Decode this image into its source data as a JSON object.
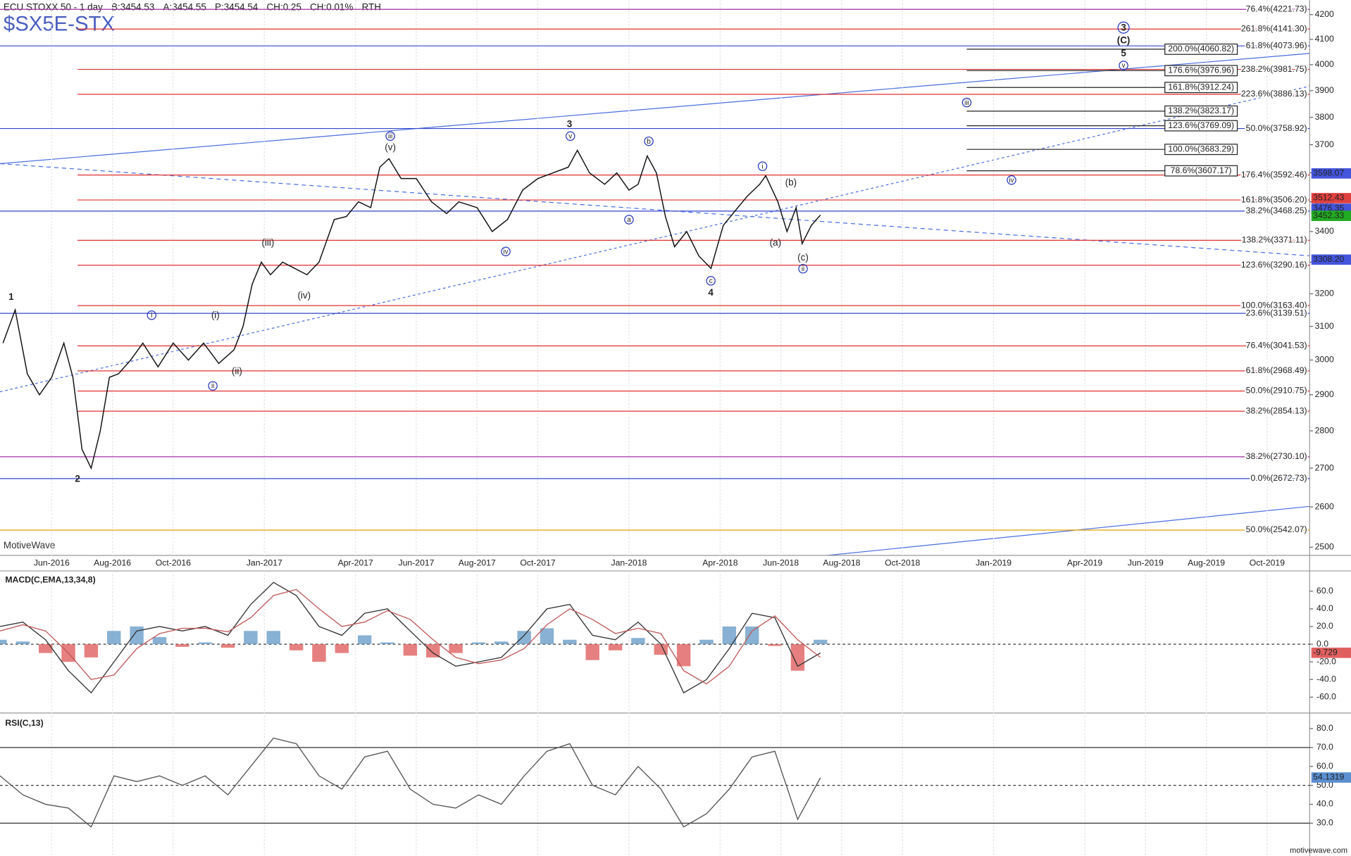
{
  "chart_data": [
    {
      "type": "price",
      "title": "$SX5E-STX",
      "watermark": "MotiveWave",
      "header": [
        {
          "text": "ECU STOXX 50 - 1 day",
          "color": "#222"
        },
        {
          "text": "B:3454.53",
          "color": "#222"
        },
        {
          "text": "A:3454.55",
          "color": "#222"
        },
        {
          "text": "P:3454.54",
          "color": "#222"
        },
        {
          "text": "CH:0.25",
          "color": "#1a9a1a"
        },
        {
          "text": "CH:0.01%",
          "color": "#1a9a1a"
        },
        {
          "text": "RTH",
          "color": "#9a9ae0"
        }
      ],
      "log": true,
      "grid": true,
      "color": "#111",
      "xlim": [
        3.3,
        46.4
      ],
      "xticks": [
        {
          "value": 5,
          "label": "Jun-2016"
        },
        {
          "value": 7,
          "label": "Aug-2016"
        },
        {
          "value": 9,
          "label": "Oct-2016"
        },
        {
          "value": 12,
          "label": "Jan-2017"
        },
        {
          "value": 15,
          "label": "Apr-2017"
        },
        {
          "value": 17,
          "label": "Jun-2017"
        },
        {
          "value": 19,
          "label": "Aug-2017"
        },
        {
          "value": 21,
          "label": "Oct-2017"
        },
        {
          "value": 24,
          "label": "Jan-2018"
        },
        {
          "value": 27,
          "label": "Apr-2018"
        },
        {
          "value": 29,
          "label": "Jun-2018"
        },
        {
          "value": 31,
          "label": "Aug-2018"
        },
        {
          "value": 33,
          "label": "Oct-2018"
        },
        {
          "value": 36,
          "label": "Jan-2019"
        },
        {
          "value": 39,
          "label": "Apr-2019"
        },
        {
          "value": 41,
          "label": "Jun-2019"
        },
        {
          "value": 43,
          "label": "Aug-2019"
        },
        {
          "value": 45,
          "label": "Oct-2019"
        }
      ],
      "ylim": [
        2480,
        4260
      ],
      "yticks": [
        2500,
        2600,
        2700,
        2800,
        2900,
        3000,
        3100,
        3200,
        3300,
        3400,
        3500,
        3600,
        3700,
        3800,
        3900,
        4000,
        4100,
        4200
      ],
      "x": [
        3.4,
        3.8,
        4.2,
        4.6,
        5.0,
        5.4,
        5.7,
        6.0,
        6.3,
        6.6,
        6.9,
        7.2,
        7.6,
        8.0,
        8.5,
        9.0,
        9.5,
        10.0,
        10.5,
        11.0,
        11.3,
        11.6,
        11.9,
        12.2,
        12.6,
        13.0,
        13.4,
        13.8,
        14.3,
        14.7,
        15.1,
        15.5,
        15.8,
        16.1,
        16.5,
        17.0,
        17.5,
        18.0,
        18.4,
        19.0,
        19.5,
        20.0,
        20.5,
        21.0,
        21.5,
        22.0,
        22.3,
        22.7,
        23.2,
        23.6,
        24.0,
        24.3,
        24.6,
        24.9,
        25.2,
        25.5,
        25.9,
        26.3,
        26.7,
        27.1,
        27.5,
        27.9,
        28.3,
        28.5,
        28.9,
        29.2,
        29.5,
        29.7,
        30.0,
        30.3
      ],
      "values": [
        3050,
        3150,
        2960,
        2900,
        2950,
        3050,
        2950,
        2750,
        2700,
        2800,
        2950,
        2960,
        3000,
        3050,
        2980,
        3050,
        3000,
        3050,
        2990,
        3030,
        3100,
        3230,
        3300,
        3260,
        3300,
        3280,
        3260,
        3300,
        3440,
        3450,
        3500,
        3480,
        3620,
        3650,
        3580,
        3580,
        3500,
        3460,
        3500,
        3480,
        3400,
        3440,
        3540,
        3580,
        3600,
        3620,
        3680,
        3600,
        3560,
        3600,
        3540,
        3560,
        3660,
        3600,
        3450,
        3350,
        3400,
        3320,
        3280,
        3420,
        3470,
        3520,
        3560,
        3590,
        3500,
        3400,
        3480,
        3360,
        3420,
        3455
      ],
      "levels": [
        {
          "label": "76.4%(4221.73)",
          "value": 4221.73,
          "color": "#a030a0"
        },
        {
          "label": "261.8%(4141.30)",
          "value": 4141.3,
          "color": "#e03030"
        },
        {
          "label": "61.8%(4073.96)",
          "value": 4073.96,
          "color": "#3344cc"
        },
        {
          "label": "238.2%(3981.75)",
          "value": 3981.75,
          "color": "#e03030"
        },
        {
          "label": "223.6%(3886.13)",
          "value": 3886.13,
          "color": "#e03030"
        },
        {
          "label": "50.0%(3758.92)",
          "value": 3758.92,
          "color": "#3344cc"
        },
        {
          "label": "176.4%(3592.46)",
          "value": 3592.46,
          "color": "#e03030"
        },
        {
          "label": "161.8%(3506.20)",
          "value": 3506.2,
          "color": "#e03030"
        },
        {
          "label": "38.2%(3468.25)",
          "value": 3468.25,
          "color": "#3344cc"
        },
        {
          "label": "138.2%(3371.11)",
          "value": 3371.11,
          "color": "#e03030"
        },
        {
          "label": "123.6%(3290.16)",
          "value": 3290.16,
          "color": "#e03030"
        },
        {
          "label": "100.0%(3163.40)",
          "value": 3163.4,
          "color": "#e03030"
        },
        {
          "label": "23.6%(3139.51)",
          "value": 3139.51,
          "color": "#3344cc"
        },
        {
          "label": "76.4%(3041.53)",
          "value": 3041.53,
          "color": "#e03030"
        },
        {
          "label": "61.8%(2968.49)",
          "value": 2968.49,
          "color": "#e03030"
        },
        {
          "label": "50.0%(2910.75)",
          "value": 2910.75,
          "color": "#e03030"
        },
        {
          "label": "38.2%(2854.13)",
          "value": 2854.13,
          "color": "#e03030"
        },
        {
          "label": "38.2%(2730.10)",
          "value": 2730.1,
          "color": "#a030a0"
        },
        {
          "label": "0.0%(2672.73)",
          "value": 2672.73,
          "color": "#3344cc"
        },
        {
          "label": "50.0%(2542.07)",
          "value": 2542.07,
          "color": "#e0a000"
        }
      ],
      "projections": [
        {
          "label": "200.0%(4060.82)",
          "value": 4060.82
        },
        {
          "label": "176.6%(3976.96)",
          "value": 3976.96
        },
        {
          "label": "161.8%(3912.24)",
          "value": 3912.24
        },
        {
          "label": "138.2%(3823.17)",
          "value": 3823.17
        },
        {
          "label": "123.6%(3769.09)",
          "value": 3769.09
        },
        {
          "label": "100.0%(3683.29)",
          "value": 3683.29
        },
        {
          "label": "78.6%(3607.17)",
          "value": 3607.17
        }
      ],
      "price_labels": [
        {
          "label": "3598.07",
          "value": 3598.07,
          "color": "#4455dd"
        },
        {
          "label": "3512.43",
          "value": 3512.43,
          "color": "#e04040"
        },
        {
          "label": "3476.35",
          "value": 3476.35,
          "color": "#4455dd"
        },
        {
          "label": "3452.33",
          "value": 3452.33,
          "color": "#22aa22"
        },
        {
          "label": "3308.20",
          "value": 3308.2,
          "color": "#4455dd"
        }
      ],
      "wave_labels": [
        "1",
        "2",
        "3",
        "4",
        "5",
        "(C)",
        "3",
        "i",
        "ii",
        "(i)",
        "(ii)",
        "(iii)",
        "(iv)",
        "(v)",
        "iii",
        "iv",
        "v",
        "a",
        "b",
        "c",
        "i",
        "(b)",
        "(a)",
        "(c)",
        "ii",
        "iii",
        "iv",
        "v"
      ],
      "wave_color": "#2233bb"
    },
    {
      "type": "macd",
      "title": "MACD(C,EMA,13,34,8)",
      "ylim": [
        -76,
        80
      ],
      "yticks": [
        {
          "value": 60,
          "label": "60.0"
        },
        {
          "value": 40,
          "label": "40.0"
        },
        {
          "value": 20,
          "label": "20.0"
        },
        {
          "value": 0,
          "label": "0.0"
        },
        {
          "value": -20,
          "label": "-20.0"
        },
        {
          "value": -40,
          "label": "-40.0"
        },
        {
          "value": -60,
          "label": "-60.0"
        }
      ],
      "x": [
        3.3,
        4.05,
        4.8,
        5.55,
        6.3,
        7.05,
        7.8,
        8.55,
        9.3,
        10.05,
        10.8,
        11.55,
        12.3,
        13.05,
        13.8,
        14.55,
        15.3,
        16.05,
        16.8,
        17.55,
        18.3,
        19.05,
        19.8,
        20.55,
        21.3,
        22.05,
        22.8,
        23.55,
        24.3,
        25.05,
        25.8,
        26.55,
        27.3,
        28.05,
        28.8,
        29.55,
        30.3
      ],
      "series": [
        {
          "name": "MACD",
          "color": "#333333",
          "values": [
            20,
            25,
            5,
            -30,
            -55,
            -20,
            15,
            20,
            15,
            20,
            10,
            45,
            70,
            55,
            20,
            10,
            35,
            40,
            15,
            -10,
            -25,
            -20,
            -15,
            10,
            40,
            45,
            10,
            5,
            25,
            0,
            -55,
            -40,
            -5,
            35,
            30,
            -25,
            -10
          ]
        },
        {
          "name": "Signal",
          "color": "#c05a5a",
          "values": [
            15,
            22,
            15,
            -10,
            -40,
            -35,
            -5,
            12,
            18,
            18,
            14,
            30,
            55,
            62,
            40,
            20,
            25,
            38,
            28,
            5,
            -15,
            -22,
            -18,
            -5,
            22,
            40,
            28,
            12,
            18,
            12,
            -30,
            -45,
            -25,
            15,
            32,
            5,
            -15
          ]
        }
      ],
      "histogram": [
        5,
        3,
        -10,
        -20,
        -15,
        15,
        20,
        8,
        -3,
        2,
        -4,
        15,
        15,
        -7,
        -20,
        -10,
        10,
        2,
        -13,
        -15,
        -10,
        2,
        3,
        15,
        18,
        5,
        -18,
        -7,
        7,
        -12,
        -25,
        5,
        20,
        20,
        -2,
        -30,
        5
      ],
      "up_color": "#6a9ec8",
      "down_color": "#e06060",
      "last_value": -9.729
    },
    {
      "type": "rsi",
      "title": "RSI(C,13)",
      "ylim": [
        14.5,
        86.4
      ],
      "yticks": [
        {
          "value": 80,
          "label": "80.0"
        },
        {
          "value": 70,
          "label": "70.0"
        },
        {
          "value": 60,
          "label": "60.0"
        },
        {
          "value": 50,
          "label": "50.0"
        },
        {
          "value": 40,
          "label": "40.0"
        },
        {
          "value": 30,
          "label": "30.0"
        }
      ],
      "bands": [
        70,
        50,
        30
      ],
      "x": [
        3.3,
        4.05,
        4.8,
        5.55,
        6.3,
        7.05,
        7.8,
        8.55,
        9.3,
        10.05,
        10.8,
        11.55,
        12.3,
        13.05,
        13.8,
        14.55,
        15.3,
        16.05,
        16.8,
        17.55,
        18.3,
        19.05,
        19.8,
        20.55,
        21.3,
        22.05,
        22.8,
        23.55,
        24.3,
        25.05,
        25.8,
        26.55,
        27.3,
        28.05,
        28.8,
        29.55,
        30.3
      ],
      "values": [
        55,
        45,
        40,
        38,
        28,
        55,
        52,
        55,
        50,
        55,
        45,
        60,
        75,
        72,
        55,
        48,
        65,
        68,
        48,
        40,
        38,
        45,
        40,
        55,
        68,
        72,
        50,
        45,
        60,
        48,
        28,
        35,
        48,
        65,
        68,
        32,
        54
      ],
      "color": "#555555",
      "last_value": 54.1319
    }
  ],
  "footer": "motivewave.com"
}
